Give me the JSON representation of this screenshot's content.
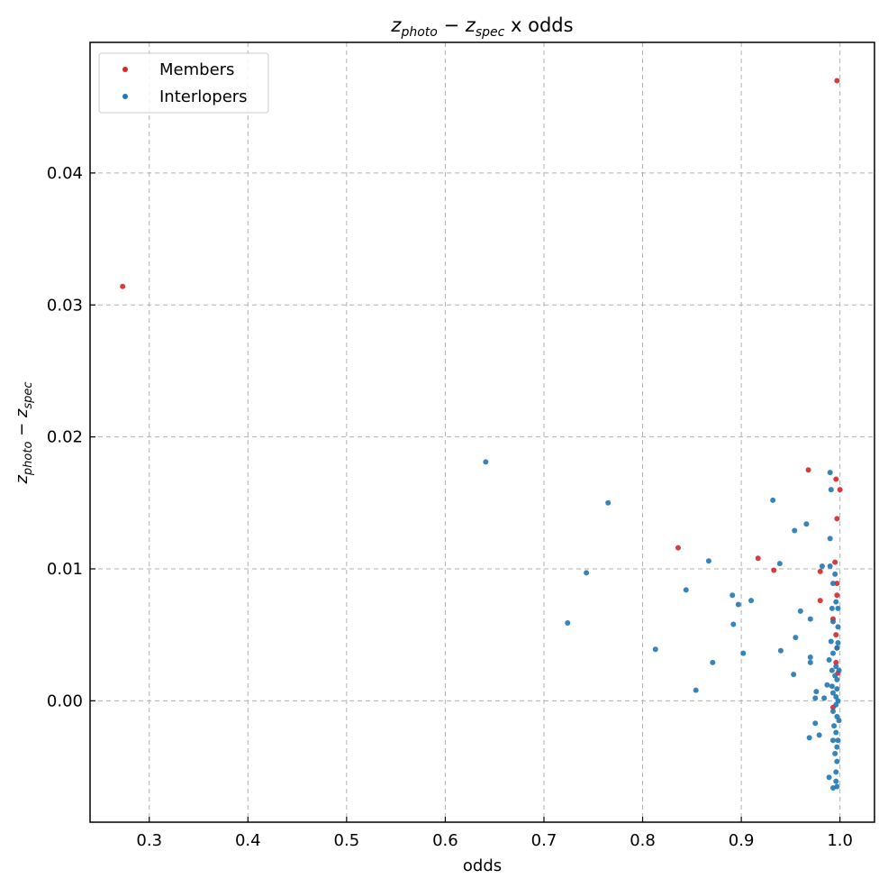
{
  "chart_data": {
    "type": "scatter",
    "title_parts": {
      "var": "z",
      "sub1": "photo",
      "minus": " − ",
      "sub2": "spec",
      "suffix": " x odds"
    },
    "xlabel": "odds",
    "ylabel_parts": {
      "var": "z",
      "sub1": "photo",
      "minus": " − ",
      "sub2": "spec"
    },
    "xlim": [
      0.24,
      1.035
    ],
    "ylim": [
      -0.0092,
      0.0499
    ],
    "xticks": [
      0.3,
      0.4,
      0.5,
      0.6,
      0.7,
      0.8,
      0.9,
      1.0
    ],
    "xtick_labels": [
      "0.3",
      "0.4",
      "0.5",
      "0.6",
      "0.7",
      "0.8",
      "0.9",
      "1.0"
    ],
    "yticks": [
      0.0,
      0.01,
      0.02,
      0.03,
      0.04
    ],
    "ytick_labels": [
      "0.00",
      "0.01",
      "0.02",
      "0.03",
      "0.04"
    ],
    "grid": true,
    "legend_position": "top-left",
    "series": [
      {
        "name": "Members",
        "color": "#d62728",
        "points": [
          [
            0.273,
            0.0314
          ],
          [
            0.997,
            0.047
          ],
          [
            0.968,
            0.0175
          ],
          [
            0.996,
            0.0168
          ],
          [
            1.0,
            0.016
          ],
          [
            0.997,
            0.0138
          ],
          [
            0.836,
            0.0116
          ],
          [
            0.917,
            0.0108
          ],
          [
            0.933,
            0.0099
          ],
          [
            0.98,
            0.0098
          ],
          [
            0.995,
            0.0105
          ],
          [
            0.997,
            0.0089
          ],
          [
            0.997,
            0.008
          ],
          [
            0.98,
            0.0076
          ],
          [
            0.993,
            0.0062
          ],
          [
            0.996,
            0.005
          ],
          [
            0.997,
            0.004
          ],
          [
            0.996,
            0.0029
          ],
          [
            0.998,
            0.0021
          ],
          [
            0.993,
            -0.0005
          ]
        ]
      },
      {
        "name": "Interlopers",
        "color": "#1f77b4",
        "points": [
          [
            0.641,
            0.0181
          ],
          [
            0.765,
            0.015
          ],
          [
            0.932,
            0.0152
          ],
          [
            0.99,
            0.0173
          ],
          [
            0.991,
            0.016
          ],
          [
            0.966,
            0.0134
          ],
          [
            0.954,
            0.0129
          ],
          [
            0.99,
            0.0123
          ],
          [
            0.867,
            0.0106
          ],
          [
            0.939,
            0.0104
          ],
          [
            0.982,
            0.0102
          ],
          [
            0.99,
            0.0102
          ],
          [
            0.743,
            0.0097
          ],
          [
            0.995,
            0.0096
          ],
          [
            0.844,
            0.0084
          ],
          [
            0.993,
            0.0089
          ],
          [
            0.891,
            0.008
          ],
          [
            0.91,
            0.0076
          ],
          [
            0.897,
            0.0073
          ],
          [
            0.996,
            0.0075
          ],
          [
            0.992,
            0.007
          ],
          [
            0.998,
            0.007
          ],
          [
            0.96,
            0.0068
          ],
          [
            0.97,
            0.0062
          ],
          [
            0.993,
            0.006
          ],
          [
            0.724,
            0.0059
          ],
          [
            0.892,
            0.0058
          ],
          [
            0.998,
            0.0056
          ],
          [
            0.955,
            0.0048
          ],
          [
            0.991,
            0.0045
          ],
          [
            0.998,
            0.0044
          ],
          [
            0.997,
            0.004
          ],
          [
            0.813,
            0.0039
          ],
          [
            0.94,
            0.0038
          ],
          [
            0.902,
            0.0036
          ],
          [
            0.993,
            0.0036
          ],
          [
            0.97,
            0.0033
          ],
          [
            0.989,
            0.0031
          ],
          [
            0.871,
            0.0029
          ],
          [
            0.97,
            0.0029
          ],
          [
            0.996,
            0.0026
          ],
          [
            0.992,
            0.0023
          ],
          [
            0.999,
            0.0023
          ],
          [
            0.953,
            0.002
          ],
          [
            0.995,
            0.0019
          ],
          [
            0.997,
            0.0016
          ],
          [
            0.987,
            0.0012
          ],
          [
            0.992,
            0.0011
          ],
          [
            0.997,
            0.0009
          ],
          [
            0.854,
            0.0008
          ],
          [
            0.976,
            0.0007
          ],
          [
            0.993,
            0.0006
          ],
          [
            0.996,
            0.0003
          ],
          [
            0.975,
            0.0002
          ],
          [
            0.984,
            0.0002
          ],
          [
            0.998,
            0.0
          ],
          [
            0.996,
            -0.0003
          ],
          [
            0.993,
            -0.0008
          ],
          [
            0.997,
            -0.0012
          ],
          [
            0.975,
            -0.0017
          ],
          [
            0.994,
            -0.0019
          ],
          [
            0.996,
            -0.0024
          ],
          [
            0.979,
            -0.0026
          ],
          [
            0.969,
            -0.0028
          ],
          [
            0.993,
            -0.003
          ],
          [
            0.997,
            -0.0035
          ],
          [
            0.995,
            -0.004
          ],
          [
            0.997,
            -0.0046
          ],
          [
            0.996,
            -0.0054
          ],
          [
            0.989,
            -0.0058
          ],
          [
            0.996,
            -0.0061
          ],
          [
            0.993,
            -0.0066
          ],
          [
            0.997,
            -0.0065
          ],
          [
            0.998,
            -0.003
          ],
          [
            0.999,
            -0.0015
          ]
        ]
      }
    ]
  }
}
